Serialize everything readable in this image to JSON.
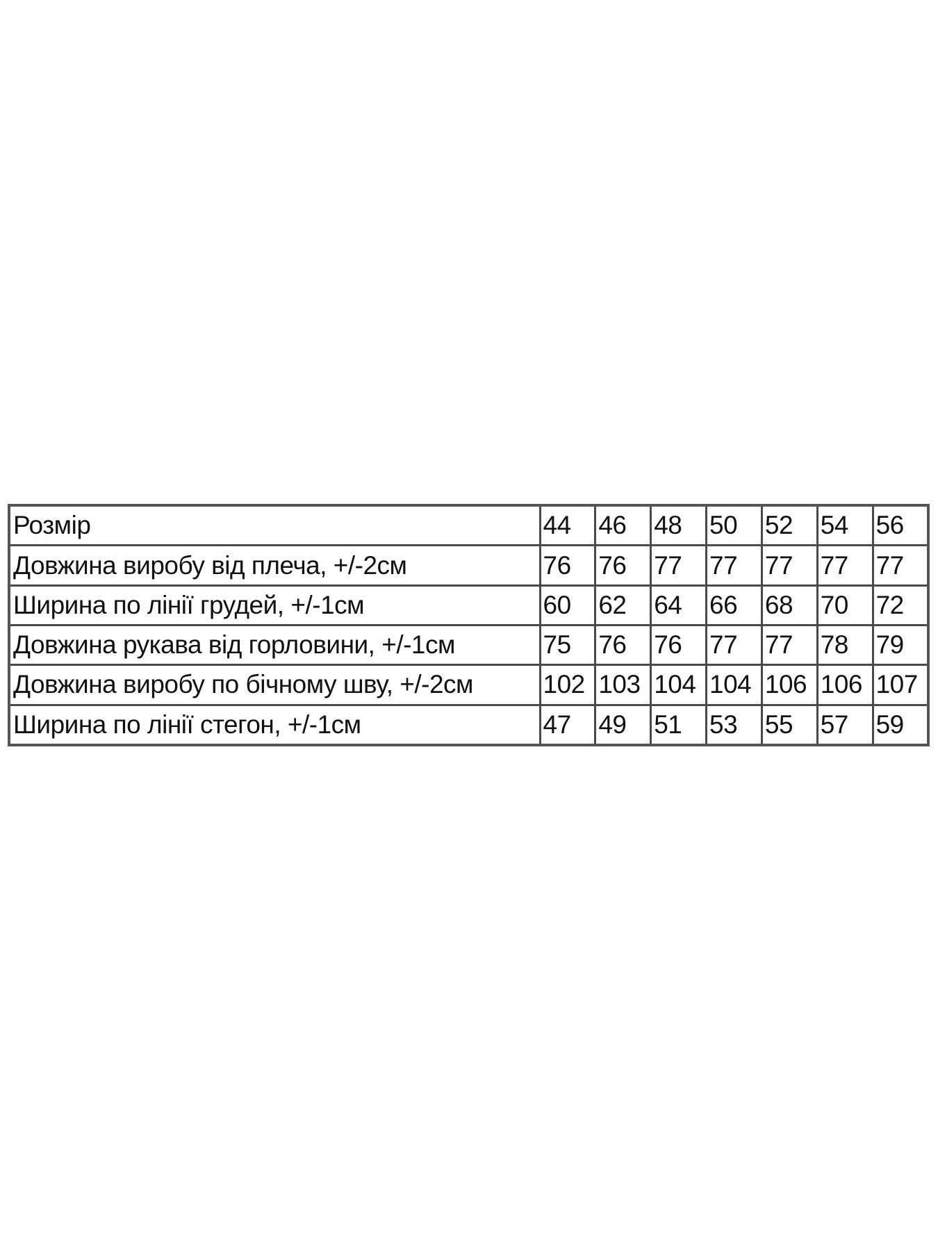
{
  "size_table": {
    "header_label": "Розмір",
    "sizes": [
      "44",
      "46",
      "48",
      "50",
      "52",
      "54",
      "56"
    ],
    "rows": [
      {
        "label": "Довжина виробу від плеча, +/-2см",
        "values": [
          "76",
          "76",
          "77",
          "77",
          "77",
          "77",
          "77"
        ]
      },
      {
        "label": "Ширина по лінії грудей, +/-1см",
        "values": [
          "60",
          "62",
          "64",
          "66",
          "68",
          "70",
          "72"
        ]
      },
      {
        "label": "Довжина рукава від горловини, +/-1см",
        "values": [
          "75",
          "76",
          "76",
          "77",
          "77",
          "78",
          "79"
        ]
      },
      {
        "label": "Довжина виробу по бічному шву, +/-2см",
        "values": [
          "102",
          "103",
          "104",
          "104",
          "106",
          "106",
          "107"
        ]
      },
      {
        "label": "Ширина по лінії стегон, +/-1см",
        "values": [
          "47",
          "49",
          "51",
          "53",
          "55",
          "57",
          "59"
        ]
      }
    ]
  }
}
